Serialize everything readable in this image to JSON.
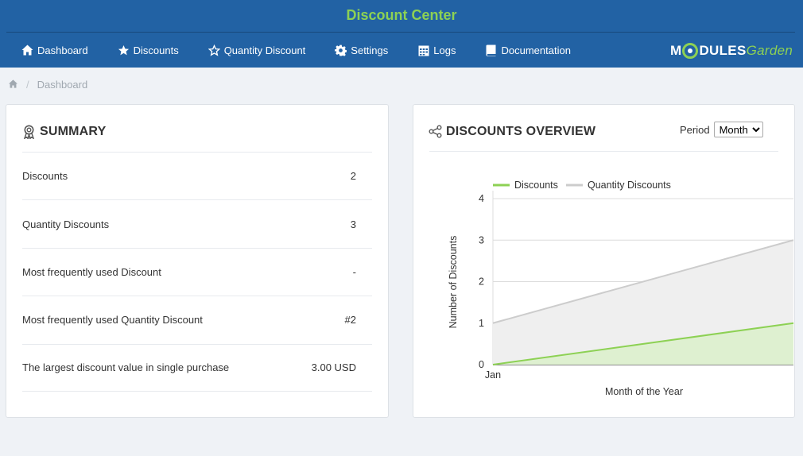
{
  "header": {
    "title": "Discount Center",
    "nav": [
      {
        "label": "Dashboard",
        "icon": "home-icon"
      },
      {
        "label": "Discounts",
        "icon": "star-icon"
      },
      {
        "label": "Quantity Discount",
        "icon": "star-outline-icon"
      },
      {
        "label": "Settings",
        "icon": "gear-icon"
      },
      {
        "label": "Logs",
        "icon": "calendar-icon"
      },
      {
        "label": "Documentation",
        "icon": "book-icon"
      }
    ],
    "logo": {
      "part1": "M",
      "part2": "DULES",
      "part3": "Garden"
    }
  },
  "breadcrumb": {
    "separator": "/",
    "current": "Dashboard"
  },
  "summary": {
    "title": "SUMMARY",
    "rows": [
      {
        "label": "Discounts",
        "value": "2"
      },
      {
        "label": "Quantity Discounts",
        "value": "3"
      },
      {
        "label": "Most frequently used Discount",
        "value": "-"
      },
      {
        "label": "Most frequently used Quantity Discount",
        "value": "#2"
      },
      {
        "label": "The largest discount value in single purchase",
        "value": "3.00 USD"
      }
    ]
  },
  "overview": {
    "title": "DISCOUNTS OVERVIEW",
    "period_label": "Period",
    "period_value": "Month"
  },
  "colors": {
    "brand_blue": "#2262a4",
    "accent_green": "#8dd154",
    "series_grey": "#cccccc"
  },
  "chart_data": {
    "type": "area",
    "x": [
      "Jan"
    ],
    "xlabel": "Month of the Year",
    "ylabel": "Number of Discounts",
    "ylim": [
      0,
      4
    ],
    "yticks": [
      0,
      1,
      2,
      3,
      4
    ],
    "grid": true,
    "legend": "top-left",
    "series": [
      {
        "name": "Discounts",
        "start": 0,
        "end": 1,
        "color": "#8dd154"
      },
      {
        "name": "Quantity Discounts",
        "start": 1,
        "end": 3,
        "color": "#cccccc"
      }
    ]
  }
}
